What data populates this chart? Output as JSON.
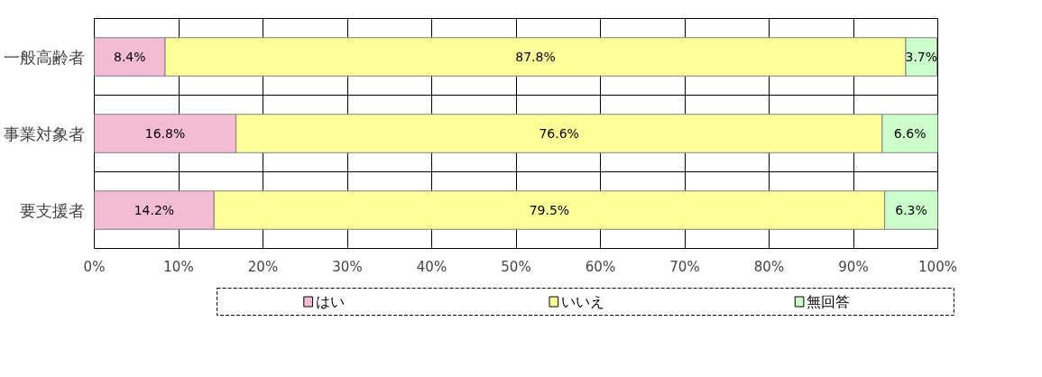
{
  "chart_data": {
    "type": "bar",
    "orientation": "horizontal",
    "stacked": true,
    "categories": [
      "一般高齢者",
      "事業対象者",
      "要支援者"
    ],
    "series": [
      {
        "name": "はい",
        "color": "#f4bcd4",
        "values": [
          8.4,
          16.8,
          14.2
        ],
        "value_labels": [
          "8.4%",
          "16.8%",
          "14.2%"
        ]
      },
      {
        "name": "いいえ",
        "color": "#ffff99",
        "values": [
          87.8,
          76.6,
          79.5
        ],
        "value_labels": [
          "87.8%",
          "76.6%",
          "79.5%"
        ]
      },
      {
        "name": "無回答",
        "color": "#ccffcc",
        "values": [
          3.7,
          6.6,
          6.3
        ],
        "value_labels": [
          "3.7%",
          "6.6%",
          "6.3%"
        ]
      }
    ],
    "xlim": [
      0,
      100
    ],
    "xticks": [
      {
        "value": 0,
        "label": "0%"
      },
      {
        "value": 10,
        "label": "10%"
      },
      {
        "value": 20,
        "label": "20%"
      },
      {
        "value": 30,
        "label": "30%"
      },
      {
        "value": 40,
        "label": "40%"
      },
      {
        "value": 50,
        "label": "50%"
      },
      {
        "value": 60,
        "label": "60%"
      },
      {
        "value": 70,
        "label": "70%"
      },
      {
        "value": 80,
        "label": "80%"
      },
      {
        "value": 90,
        "label": "90%"
      },
      {
        "value": 100,
        "label": "100%"
      }
    ],
    "grid": true,
    "legend": "bottom"
  }
}
